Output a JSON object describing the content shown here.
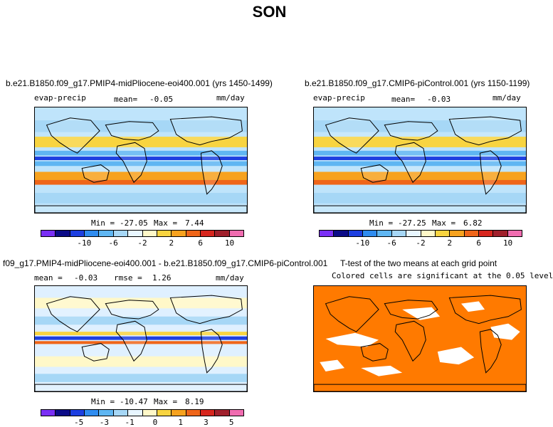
{
  "figure": {
    "title": "SON"
  },
  "palettes": {
    "bwr": [
      "#7a2ff5",
      "#0b0b87",
      "#1d3fe0",
      "#2f8cf0",
      "#5fb6f2",
      "#a6d7f6",
      "#e8f6ff",
      "#fff8c8",
      "#f8d440",
      "#f7a21e",
      "#ef6519",
      "#d7261e",
      "#a0202c",
      "#f06cb0"
    ],
    "ttest": "#ff7a00"
  },
  "panels": [
    {
      "title": "b.e21.B1850.f09_g17.PMIP4-midPliocene-eoi400.001 (yrs 1450-1499)",
      "variable": "evap-precip",
      "mean_label": "mean=",
      "mean_value": "-0.05",
      "units": "mm/day",
      "min_label": "Min =",
      "min_value": "-27.05",
      "max_label": "Max =",
      "max_value": "7.44",
      "ticks": [
        "-10",
        "-6",
        "-2",
        "2",
        "6",
        "10"
      ]
    },
    {
      "title": "b.e21.B1850.f09_g17.CMIP6-piControl.001 (yrs 1150-1199)",
      "variable": "evap-precip",
      "mean_label": "mean=",
      "mean_value": "-0.03",
      "units": "mm/day",
      "min_label": "Min =",
      "min_value": "-27.25",
      "max_label": "Max =",
      "max_value": "6.82",
      "ticks": [
        "-10",
        "-6",
        "-2",
        "2",
        "6",
        "10"
      ]
    },
    {
      "title": "f09_g17.PMIP4-midPliocene-eoi400.001 - b.e21.B1850.f09_g17.CMIP6-piControl.001",
      "mean_label": "mean =",
      "mean_value": "-0.03",
      "rmse_label": "rmse =",
      "rmse_value": "1.26",
      "units": "mm/day",
      "min_label": "Min =",
      "min_value": "-10.47",
      "max_label": "Max =",
      "max_value": "8.19",
      "ticks": [
        "-5",
        "-3",
        "-1",
        "0",
        "1",
        "3",
        "5"
      ]
    },
    {
      "title": "T-test of the two means at each grid point",
      "subtitle": "Colored cells are significant at the 0.05 level"
    }
  ]
}
